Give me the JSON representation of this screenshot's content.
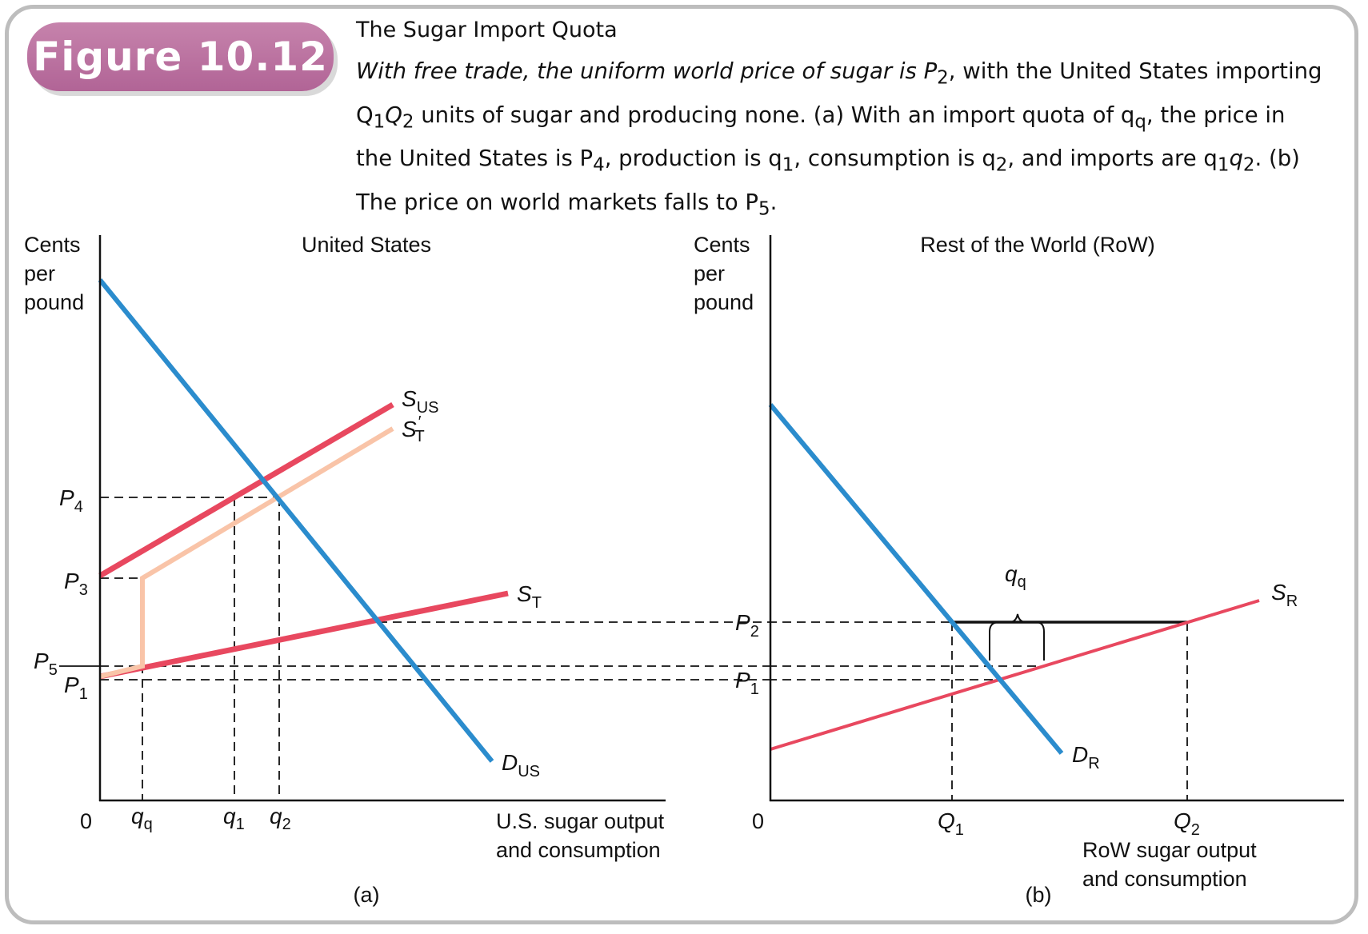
{
  "figure": {
    "badge": "Figure 10.12",
    "title": "The Sugar Import Quota",
    "caption_parts": [
      "With free trade, the uniform world price of sugar is P",
      "2",
      ", with the United States importing Q",
      "1",
      "Q",
      "2",
      " units of sugar and producing none. (a) With an import quota of q",
      "q",
      ", the price in the United States is P",
      "4",
      ", production is q",
      "1",
      ", consumption is q",
      "2",
      ", and imports are q",
      "1",
      "q",
      "2",
      ". (b) The price on world markets falls to P",
      "5",
      "."
    ]
  },
  "panel_a": {
    "title": "United States",
    "y_axis_label": [
      "Cents",
      "per",
      "pound"
    ],
    "x_axis_label": [
      "U.S. sugar output",
      "and consumption"
    ],
    "origin": "0",
    "panel_label": "(a)",
    "price_labels": [
      {
        "main": "P",
        "sub": "4"
      },
      {
        "main": "P",
        "sub": "3"
      },
      {
        "main": "P",
        "sub": "5"
      },
      {
        "main": "P",
        "sub": "1"
      }
    ],
    "quantity_labels": [
      {
        "main": "q",
        "sub": "q"
      },
      {
        "main": "q",
        "sub": "1"
      },
      {
        "main": "q",
        "sub": "2"
      }
    ],
    "curves": {
      "s_us": {
        "main": "S",
        "sub": "US"
      },
      "s_t_prime": {
        "main": "S",
        "sup": "′",
        "sub": "T"
      },
      "s_t": {
        "main": "S",
        "sub": "T"
      },
      "d_us": {
        "main": "D",
        "sub": "US"
      }
    }
  },
  "panel_b": {
    "title": "Rest of the World (RoW)",
    "y_axis_label": [
      "Cents",
      "per",
      "pound"
    ],
    "x_axis_label": [
      "RoW sugar output",
      "and consumption"
    ],
    "origin": "0",
    "panel_label": "(b)",
    "price_labels": [
      {
        "main": "P",
        "sub": "2"
      },
      {
        "main": "P",
        "sub": "1"
      }
    ],
    "quantity_labels": [
      {
        "main": "Q",
        "sub": "1"
      },
      {
        "main": "Q",
        "sub": "2"
      }
    ],
    "quota_label": {
      "main": "q",
      "sub": "q"
    },
    "curves": {
      "s_r": {
        "main": "S",
        "sub": "R"
      },
      "d_r": {
        "main": "D",
        "sub": "R"
      }
    }
  },
  "colors": {
    "demand": "#2b8ccd",
    "supply": "#e8485f",
    "supply_quota": "#f9c4a8",
    "badge": "#b86d9f",
    "frame": "#bdbdbd"
  }
}
